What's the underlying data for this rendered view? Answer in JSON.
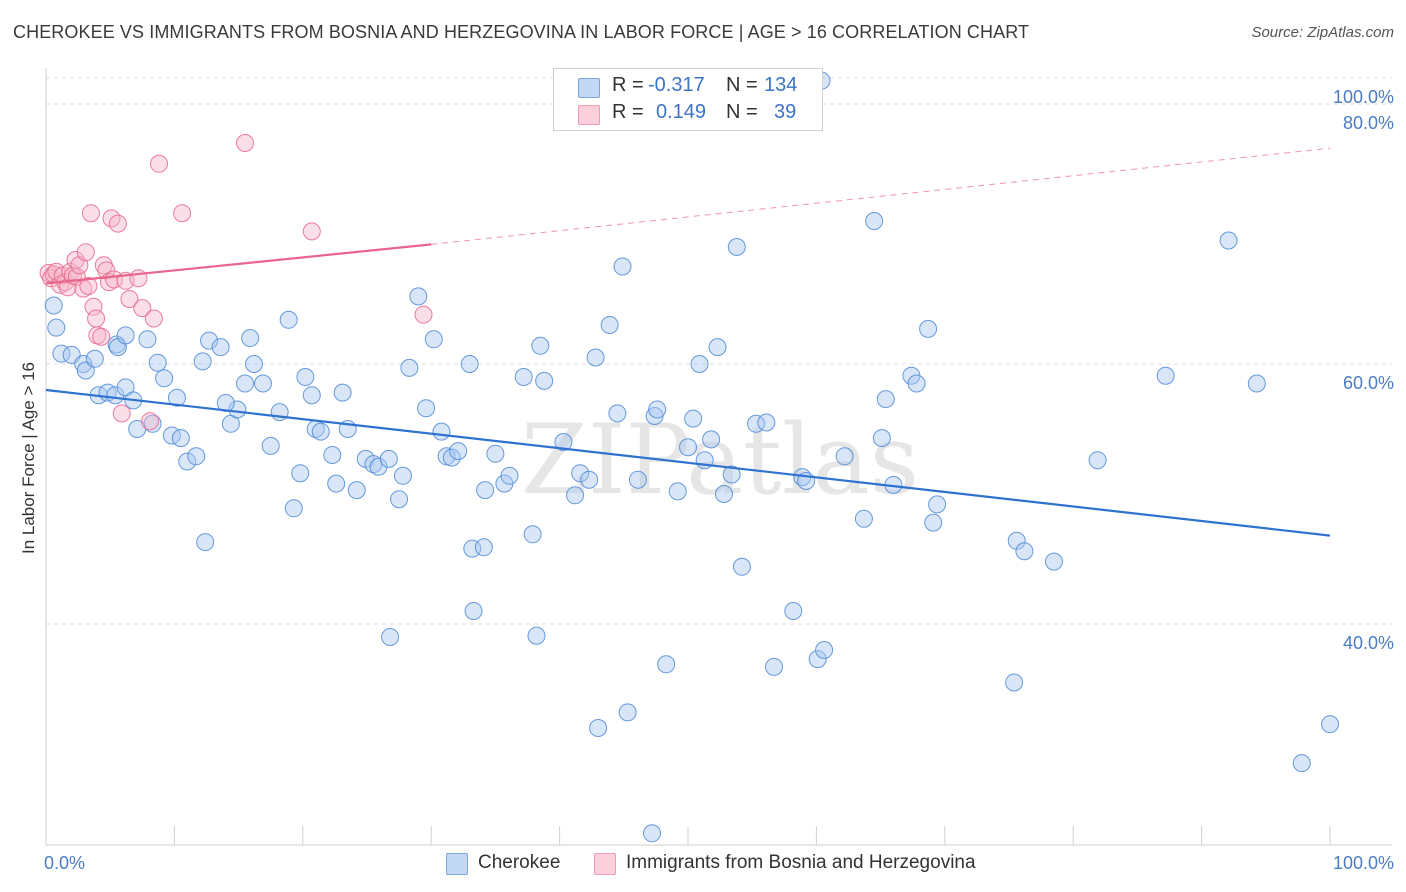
{
  "title": "CHEROKEE VS IMMIGRANTS FROM BOSNIA AND HERZEGOVINA IN LABOR FORCE | AGE > 16 CORRELATION CHART",
  "source": "Source: ZipAtlas.com",
  "watermark": "ZIPatlas",
  "legend": {
    "rows": [
      {
        "r_label": "R = ",
        "r_value": "-0.317",
        "n_label": "N = ",
        "n_value": "134",
        "color": "#a8c8f0"
      },
      {
        "r_label": "R = ",
        "r_value": "0.149",
        "n_label": "N = ",
        "n_value": "39",
        "color": "#f6b8cb"
      }
    ]
  },
  "bottom_legend": [
    {
      "label": "Cherokee",
      "color": "#a8c8f0"
    },
    {
      "label": "Immigrants from Bosnia and Herzegovina",
      "color": "#f6b8cb"
    }
  ],
  "chart_data": {
    "type": "scatter",
    "title": "CHEROKEE VS IMMIGRANTS FROM BOSNIA AND HERZEGOVINA IN LABOR FORCE | AGE > 16 CORRELATION CHART",
    "xlabel": "",
    "ylabel": "In Labor Force | Age > 16",
    "xlim": [
      0,
      100
    ],
    "ylim": [
      23,
      82
    ],
    "x_tick_labels": [
      "0.0%",
      "100.0%"
    ],
    "y_ticks": [
      40,
      60,
      80,
      100
    ],
    "y_tick_labels": [
      "40.0%",
      "60.0%",
      "80.0%",
      "100.0%"
    ],
    "grid": true,
    "legend_position": "top-center",
    "series": [
      {
        "name": "Cherokee",
        "color": "#4f8ad6",
        "fill": "#a8c8f0",
        "trend": {
          "x": [
            0,
            100
          ],
          "y": [
            58.0,
            46.8
          ],
          "style": "solid"
        },
        "points": [
          [
            0.8,
            62.8
          ],
          [
            1.2,
            60.8
          ],
          [
            2.0,
            60.7
          ],
          [
            2.9,
            60.0
          ],
          [
            3.1,
            59.5
          ],
          [
            4.1,
            57.6
          ],
          [
            4.8,
            57.8
          ],
          [
            5.4,
            57.6
          ],
          [
            5.5,
            61.5
          ],
          [
            5.6,
            61.3
          ],
          [
            6.2,
            62.2
          ],
          [
            6.2,
            58.2
          ],
          [
            6.8,
            57.2
          ],
          [
            7.1,
            55.0
          ],
          [
            7.9,
            61.9
          ],
          [
            8.3,
            55.4
          ],
          [
            8.7,
            60.1
          ],
          [
            9.8,
            54.5
          ],
          [
            10.2,
            57.4
          ],
          [
            10.5,
            54.3
          ],
          [
            11.0,
            52.5
          ],
          [
            11.7,
            52.9
          ],
          [
            12.2,
            60.2
          ],
          [
            12.4,
            46.3
          ],
          [
            12.7,
            61.8
          ],
          [
            13.6,
            61.3
          ],
          [
            14.4,
            55.4
          ],
          [
            14.9,
            56.5
          ],
          [
            15.5,
            58.5
          ],
          [
            15.9,
            62.0
          ],
          [
            16.2,
            60.0
          ],
          [
            16.9,
            58.5
          ],
          [
            17.5,
            53.7
          ],
          [
            18.2,
            56.3
          ],
          [
            18.9,
            63.4
          ],
          [
            19.3,
            48.9
          ],
          [
            19.8,
            51.6
          ],
          [
            20.2,
            59.0
          ],
          [
            20.7,
            57.6
          ],
          [
            21.0,
            55.0
          ],
          [
            21.4,
            54.8
          ],
          [
            22.3,
            53.0
          ],
          [
            22.6,
            50.8
          ],
          [
            23.1,
            57.8
          ],
          [
            23.5,
            55.0
          ],
          [
            24.2,
            50.3
          ],
          [
            24.9,
            52.7
          ],
          [
            25.5,
            52.3
          ],
          [
            25.9,
            52.1
          ],
          [
            26.7,
            52.7
          ],
          [
            26.8,
            39.0
          ],
          [
            27.5,
            49.6
          ],
          [
            27.8,
            51.4
          ],
          [
            28.3,
            59.7
          ],
          [
            29.0,
            65.2
          ],
          [
            29.6,
            56.6
          ],
          [
            30.2,
            61.9
          ],
          [
            30.8,
            54.8
          ],
          [
            31.2,
            52.9
          ],
          [
            31.6,
            52.8
          ],
          [
            32.1,
            53.3
          ],
          [
            33.0,
            60.0
          ],
          [
            33.2,
            45.8
          ],
          [
            33.3,
            41.0
          ],
          [
            34.1,
            45.9
          ],
          [
            34.2,
            50.3
          ],
          [
            35.0,
            53.1
          ],
          [
            35.7,
            50.8
          ],
          [
            36.1,
            51.4
          ],
          [
            37.2,
            59.0
          ],
          [
            37.9,
            46.9
          ],
          [
            38.2,
            39.1
          ],
          [
            38.5,
            61.4
          ],
          [
            38.8,
            58.7
          ],
          [
            40.3,
            54.0
          ],
          [
            41.2,
            49.9
          ],
          [
            41.6,
            51.6
          ],
          [
            42.3,
            51.1
          ],
          [
            42.8,
            60.5
          ],
          [
            43.0,
            32.0
          ],
          [
            43.9,
            63.0
          ],
          [
            44.5,
            56.2
          ],
          [
            44.9,
            67.5
          ],
          [
            46.1,
            51.1
          ],
          [
            47.4,
            56.0
          ],
          [
            47.6,
            56.5
          ],
          [
            48.3,
            36.9
          ],
          [
            49.2,
            50.2
          ],
          [
            50.0,
            53.6
          ],
          [
            50.4,
            55.8
          ],
          [
            50.9,
            60.0
          ],
          [
            51.3,
            52.6
          ],
          [
            51.8,
            54.2
          ],
          [
            52.3,
            61.3
          ],
          [
            52.8,
            50.0
          ],
          [
            53.4,
            51.5
          ],
          [
            53.8,
            69.0
          ],
          [
            54.2,
            44.4
          ],
          [
            55.3,
            55.4
          ],
          [
            56.1,
            55.5
          ],
          [
            56.7,
            36.7
          ],
          [
            58.2,
            41.0
          ],
          [
            58.9,
            51.3
          ],
          [
            59.2,
            51.0
          ],
          [
            60.1,
            37.3
          ],
          [
            60.4,
            81.8
          ],
          [
            60.6,
            38.0
          ],
          [
            62.2,
            52.9
          ],
          [
            63.7,
            48.1
          ],
          [
            64.5,
            71.0
          ],
          [
            65.1,
            54.3
          ],
          [
            65.4,
            57.3
          ],
          [
            66.0,
            50.7
          ],
          [
            67.4,
            59.1
          ],
          [
            67.8,
            58.5
          ],
          [
            68.7,
            62.7
          ],
          [
            69.1,
            47.8
          ],
          [
            69.4,
            49.2
          ],
          [
            75.4,
            35.5
          ],
          [
            75.6,
            46.4
          ],
          [
            76.2,
            45.6
          ],
          [
            78.5,
            44.8
          ],
          [
            81.9,
            52.6
          ],
          [
            87.2,
            59.1
          ],
          [
            92.1,
            69.5
          ],
          [
            94.3,
            58.5
          ],
          [
            97.8,
            29.3
          ],
          [
            100.0,
            32.3
          ],
          [
            0.6,
            64.5
          ],
          [
            3.8,
            60.4
          ],
          [
            45.3,
            33.2
          ],
          [
            47.2,
            23.9
          ],
          [
            9.2,
            58.9
          ],
          [
            14.0,
            57.0
          ]
        ]
      },
      {
        "name": "Immigrants from Bosnia and Herzegovina",
        "color": "#e8668d",
        "fill": "#f6b8cb",
        "trend": {
          "x": [
            0,
            30,
            100
          ],
          "y": [
            66.2,
            69.2,
            76.6
          ],
          "solid_until": 30
        },
        "points": [
          [
            0.2,
            67.0
          ],
          [
            0.4,
            66.6
          ],
          [
            0.6,
            66.9
          ],
          [
            0.8,
            67.1
          ],
          [
            1.1,
            66.1
          ],
          [
            1.3,
            66.8
          ],
          [
            1.5,
            66.3
          ],
          [
            1.7,
            65.9
          ],
          [
            1.9,
            67.1
          ],
          [
            2.1,
            66.8
          ],
          [
            2.3,
            68.0
          ],
          [
            2.4,
            66.7
          ],
          [
            2.6,
            67.6
          ],
          [
            2.9,
            65.8
          ],
          [
            3.1,
            68.6
          ],
          [
            3.3,
            66.0
          ],
          [
            3.5,
            71.6
          ],
          [
            3.7,
            64.4
          ],
          [
            3.9,
            63.5
          ],
          [
            4.0,
            62.2
          ],
          [
            4.3,
            62.1
          ],
          [
            4.5,
            67.6
          ],
          [
            4.7,
            67.2
          ],
          [
            4.9,
            66.3
          ],
          [
            5.1,
            71.2
          ],
          [
            5.3,
            66.5
          ],
          [
            5.6,
            70.8
          ],
          [
            5.9,
            56.2
          ],
          [
            6.2,
            66.4
          ],
          [
            6.5,
            65.0
          ],
          [
            7.2,
            66.6
          ],
          [
            7.5,
            64.3
          ],
          [
            8.1,
            55.6
          ],
          [
            8.4,
            63.5
          ],
          [
            8.8,
            75.4
          ],
          [
            10.6,
            71.6
          ],
          [
            15.5,
            77.0
          ],
          [
            20.7,
            70.2
          ],
          [
            29.4,
            63.8
          ]
        ]
      }
    ]
  }
}
